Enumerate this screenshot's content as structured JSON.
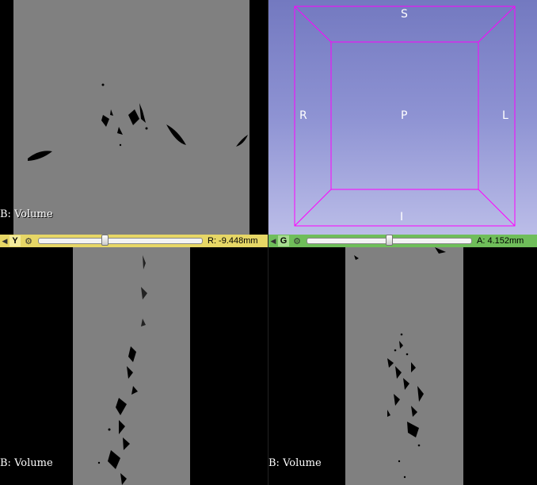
{
  "views": {
    "red": {
      "label": "B: Volume"
    },
    "three_d": {
      "orientation": {
        "superior": "S",
        "inferior": "I",
        "right": "R",
        "left": "L",
        "posterior": "P"
      },
      "box_color": "#ff00ff"
    },
    "yellow": {
      "label": "B: Volume",
      "bar": {
        "letter": "Y",
        "offset": "R: -9.448mm",
        "slider_position": 0.41,
        "pin_icon": "pin-icon",
        "gear_icon": "gear-icon",
        "color": "#e7d766"
      }
    },
    "green": {
      "label": "B: Volume",
      "bar": {
        "letter": "G",
        "offset": "A: 4.152mm",
        "slider_position": 0.5,
        "pin_icon": "pin-icon",
        "gear_icon": "gear-icon",
        "color": "#6fbe5a"
      }
    }
  }
}
